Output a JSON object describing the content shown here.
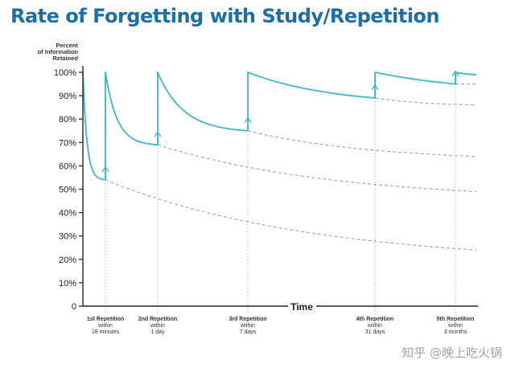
{
  "chart_data": {
    "type": "line",
    "title": "Rate of Forgetting with Study/Repetition",
    "ylabel": [
      "Percent",
      "of Information",
      "Retained"
    ],
    "xlabel": "Time",
    "ylim": [
      0,
      100
    ],
    "yticks": [
      "0",
      "10%",
      "20%",
      "30%",
      "40%",
      "50%",
      "60%",
      "70%",
      "80%",
      "90%",
      "100%"
    ],
    "colors": {
      "curve": "#3bb6cf",
      "decay": "#a0a0a0",
      "axis": "#222222",
      "title": "#1b6fa8"
    },
    "repetitions": [
      {
        "label": "1st Repetition",
        "within": "within",
        "period": "18 minutes",
        "retained_before": 54
      },
      {
        "label": "2nd Repetition",
        "within": "within",
        "period": "1 day",
        "retained_before": 69
      },
      {
        "label": "3rd Repetition",
        "within": "within",
        "period": "7 days",
        "retained_before": 75
      },
      {
        "label": "4th Repetition",
        "within": "within",
        "period": "31 days",
        "retained_before": 89
      },
      {
        "label": "5th Repetition",
        "within": "within",
        "period": "3 months",
        "retained_before": 95
      }
    ],
    "forgetting_without_review_end": [
      24,
      49,
      64,
      86,
      95
    ],
    "final_retained": 99
  },
  "watermark": "知乎 @晚上吃火锅"
}
